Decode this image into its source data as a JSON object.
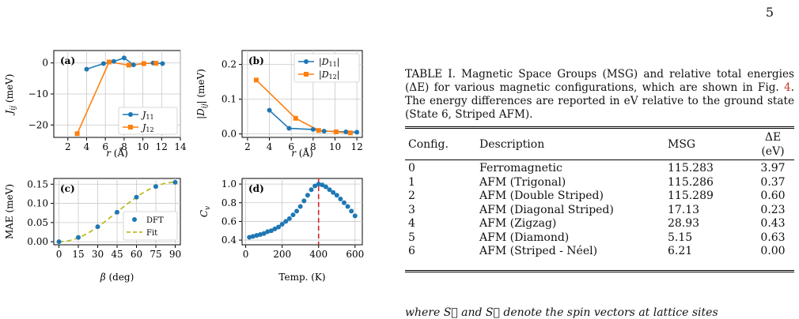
{
  "page_number": "5",
  "figure": {
    "panels": [
      {
        "label": "(a)",
        "ylabel": "J_ij (meV)",
        "xlabel": "r (Å)"
      },
      {
        "label": "(b)",
        "ylabel": "|D_ij| (meV)",
        "xlabel": "r (Å)"
      },
      {
        "label": "(c)",
        "ylabel": "MAE (meV)",
        "xlabel": "β (deg)"
      },
      {
        "label": "(d)",
        "ylabel": "C_v",
        "xlabel": "Temp. (K)"
      }
    ]
  },
  "chart_data": [
    {
      "type": "line",
      "panel": "(a)",
      "xlabel": "r (Å)",
      "ylabel": "J_ij (meV)",
      "xlim": [
        0.5,
        14
      ],
      "ylim": [
        -24,
        4
      ],
      "xticks": [
        2,
        4,
        6,
        8,
        10,
        12,
        14
      ],
      "yticks": [
        0,
        -10,
        -20
      ],
      "grid": true,
      "legend": "bottom-right",
      "series": [
        {
          "name": "J11",
          "color": "#1f77b4",
          "marker": "circle",
          "x": [
            4.0,
            5.8,
            6.9,
            8.0,
            9.0,
            10.1,
            11.1,
            12.1
          ],
          "y": [
            -2.0,
            -0.2,
            0.5,
            1.6,
            -0.6,
            -0.2,
            0.0,
            -0.2
          ]
        },
        {
          "name": "J12",
          "color": "#ff7f0e",
          "marker": "square",
          "x": [
            3.0,
            6.4,
            8.5,
            10.1,
            11.4
          ],
          "y": [
            -22.8,
            0.3,
            -0.7,
            -0.2,
            -0.1
          ]
        }
      ]
    },
    {
      "type": "line",
      "panel": "(b)",
      "xlabel": "r (Å)",
      "ylabel": "|D_ij| (meV)",
      "xlim": [
        1.5,
        12.5
      ],
      "ylim": [
        -0.01,
        0.24
      ],
      "xticks": [
        2,
        4,
        6,
        8,
        10,
        12
      ],
      "yticks": [
        0.0,
        0.1,
        0.2
      ],
      "grid": true,
      "legend": "top-right",
      "series": [
        {
          "name": "|D11|",
          "color": "#1f77b4",
          "marker": "circle",
          "x": [
            4.0,
            5.8,
            8.0,
            9.0,
            11.0,
            12.0
          ],
          "y": [
            0.068,
            0.016,
            0.013,
            0.008,
            0.006,
            0.005
          ]
        },
        {
          "name": "|D12|",
          "color": "#ff7f0e",
          "marker": "square",
          "x": [
            2.8,
            6.4,
            8.5,
            10.1,
            11.4
          ],
          "y": [
            0.155,
            0.045,
            0.01,
            0.006,
            0.003
          ]
        }
      ]
    },
    {
      "type": "scatter",
      "panel": "(c)",
      "xlabel": "β (deg)",
      "ylabel": "MAE (meV)",
      "xlim": [
        -4,
        94
      ],
      "ylim": [
        -0.008,
        0.165
      ],
      "xticks": [
        0,
        15,
        30,
        45,
        60,
        75,
        90
      ],
      "yticks": [
        0.0,
        0.05,
        0.1,
        0.15
      ],
      "grid": true,
      "legend": "bottom-right",
      "series": [
        {
          "name": "DFT",
          "color": "#1f77b4",
          "marker": "circle",
          "x": [
            0,
            15,
            30,
            45,
            60,
            75,
            90
          ],
          "y": [
            0.0,
            0.011,
            0.039,
            0.077,
            0.116,
            0.144,
            0.155
          ]
        },
        {
          "name": "Fit",
          "color": "#bcbd22",
          "style": "dashed",
          "fit": "0.155*sin^2(beta)"
        }
      ]
    },
    {
      "type": "scatter",
      "panel": "(d)",
      "xlabel": "Temp. (K)",
      "ylabel": "C_v",
      "xlim": [
        -20,
        640
      ],
      "ylim": [
        0.35,
        1.06
      ],
      "xticks": [
        0,
        200,
        400,
        600
      ],
      "yticks": [
        0.4,
        0.6,
        0.8,
        1.0
      ],
      "grid": true,
      "vline": 400,
      "vline_color": "#d62728",
      "series": [
        {
          "name": "C_v",
          "color": "#1f77b4",
          "marker": "circle",
          "x": [
            20,
            40,
            60,
            80,
            100,
            120,
            140,
            160,
            180,
            200,
            220,
            240,
            260,
            280,
            300,
            320,
            340,
            360,
            380,
            400,
            420,
            440,
            460,
            480,
            500,
            520,
            540,
            560,
            580,
            600
          ],
          "y": [
            0.43,
            0.44,
            0.45,
            0.46,
            0.47,
            0.49,
            0.5,
            0.52,
            0.54,
            0.57,
            0.6,
            0.63,
            0.67,
            0.71,
            0.76,
            0.82,
            0.88,
            0.94,
            0.98,
            1.0,
            0.99,
            0.97,
            0.94,
            0.91,
            0.88,
            0.84,
            0.8,
            0.76,
            0.71,
            0.66
          ]
        }
      ]
    }
  ],
  "caption": {
    "part1": "TABLE I. Magnetic Space Groups (MSG) and relative total energies (ΔE) for various magnetic configurations, which are shown in Fig. ",
    "ref": "4",
    "part2": ". The energy differences are reported in eV relative to the ground state (State 6, Striped AFM)."
  },
  "table": {
    "headers": [
      "Config.",
      "Description",
      "MSG",
      "ΔE (eV)"
    ],
    "rows": [
      [
        "0",
        "Ferromagnetic",
        "115.283",
        "3.97"
      ],
      [
        "1",
        "AFM (Trigonal)",
        "115.286",
        "0.37"
      ],
      [
        "2",
        "AFM (Double Striped)",
        "115.289",
        "0.60"
      ],
      [
        "3",
        "AFM (Diagonal Striped)",
        "17.13",
        "0.23"
      ],
      [
        "4",
        "AFM (Zigzag)",
        "28.93",
        "0.43"
      ],
      [
        "5",
        "AFM (Diamond)",
        "5.15",
        "0.63"
      ],
      [
        "6",
        "AFM (Striped - Néel)",
        "6.21",
        "0.00"
      ]
    ]
  },
  "text_fragment": "where S⃗ and S⃗ denote the spin vectors at lattice sites"
}
